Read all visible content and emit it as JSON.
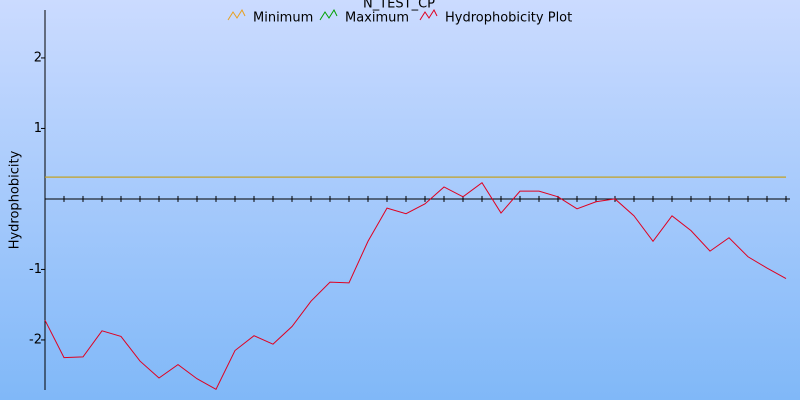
{
  "chart_data": {
    "type": "line",
    "title": "N_TEST_CP",
    "y_label": "Hydrophobicity",
    "x": [
      1,
      2,
      3,
      4,
      5,
      6,
      7,
      8,
      9,
      10,
      11,
      12,
      13,
      14,
      15,
      16,
      17,
      18,
      19,
      20,
      21,
      22,
      23,
      24,
      25,
      26,
      27,
      28,
      29,
      30,
      31,
      32,
      33,
      34,
      35,
      36,
      37,
      38,
      39,
      40
    ],
    "xlim": [
      1,
      40.21
    ],
    "ylim": [
      -2.71,
      2.68
    ],
    "yticks": [
      -2,
      -1,
      1,
      2
    ],
    "series": [
      {
        "name": "Maximum",
        "color": "#00a000",
        "values": [
          0.31,
          0.31,
          0.31,
          0.31,
          0.31,
          0.31,
          0.31,
          0.31,
          0.31,
          0.31,
          0.31,
          0.31,
          0.31,
          0.31,
          0.31,
          0.31,
          0.31,
          0.31,
          0.31,
          0.31,
          0.31,
          0.31,
          0.31,
          0.31,
          0.31,
          0.31,
          0.31,
          0.31,
          0.31,
          0.31,
          0.31,
          0.31,
          0.31,
          0.31,
          0.31,
          0.31,
          0.31,
          0.31,
          0.31,
          0.31
        ]
      },
      {
        "name": "Minimum",
        "color": "#e8a020",
        "values": [
          0.31,
          0.31,
          0.31,
          0.31,
          0.31,
          0.31,
          0.31,
          0.31,
          0.31,
          0.31,
          0.31,
          0.31,
          0.31,
          0.31,
          0.31,
          0.31,
          0.31,
          0.31,
          0.31,
          0.31,
          0.31,
          0.31,
          0.31,
          0.31,
          0.31,
          0.31,
          0.31,
          0.31,
          0.31,
          0.31,
          0.31,
          0.31,
          0.31,
          0.31,
          0.31,
          0.31,
          0.31,
          0.31,
          0.31,
          0.31
        ]
      },
      {
        "name": "Hydrophobicity Plot",
        "color": "#e00020",
        "values": [
          -1.72,
          -2.25,
          -2.24,
          -1.87,
          -1.95,
          -2.3,
          -2.54,
          -2.35,
          -2.55,
          -2.7,
          -2.15,
          -1.94,
          -2.06,
          -1.81,
          -1.45,
          -1.18,
          -1.19,
          -0.6,
          -0.13,
          -0.21,
          -0.07,
          0.17,
          0.03,
          0.23,
          -0.2,
          0.11,
          0.11,
          0.03,
          -0.14,
          -0.04,
          0.0,
          -0.24,
          -0.6,
          -0.24,
          -0.45,
          -0.74,
          -0.55,
          -0.82,
          -0.98,
          -1.13
        ]
      }
    ]
  }
}
